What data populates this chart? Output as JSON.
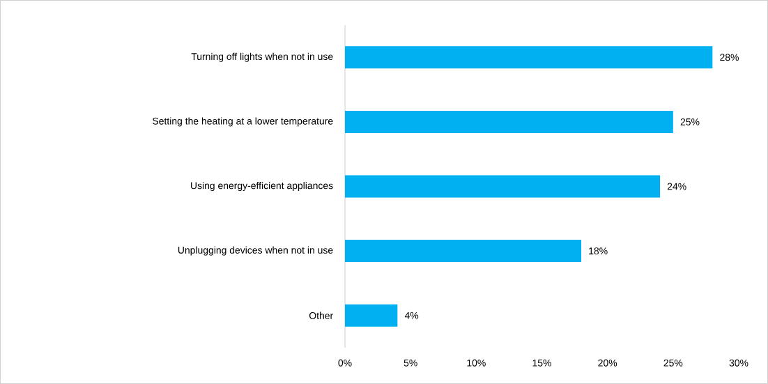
{
  "chart_data": {
    "type": "bar",
    "orientation": "horizontal",
    "categories": [
      "Turning off lights when not in use",
      "Setting the heating at a lower temperature",
      "Using energy-efficient appliances",
      "Unplugging devices when not in use",
      "Other"
    ],
    "values": [
      28,
      25,
      24,
      18,
      4
    ],
    "value_labels": [
      "28%",
      "25%",
      "24%",
      "18%",
      "4%"
    ],
    "color": "#00b0f0",
    "xlim": [
      0,
      30
    ],
    "xticks": [
      {
        "value": 0,
        "label": "0%"
      },
      {
        "value": 5,
        "label": "5%"
      },
      {
        "value": 10,
        "label": "10%"
      },
      {
        "value": 15,
        "label": "15%"
      },
      {
        "value": 20,
        "label": "20%"
      },
      {
        "value": 25,
        "label": "25%"
      },
      {
        "value": 30,
        "label": "30%"
      }
    ]
  }
}
